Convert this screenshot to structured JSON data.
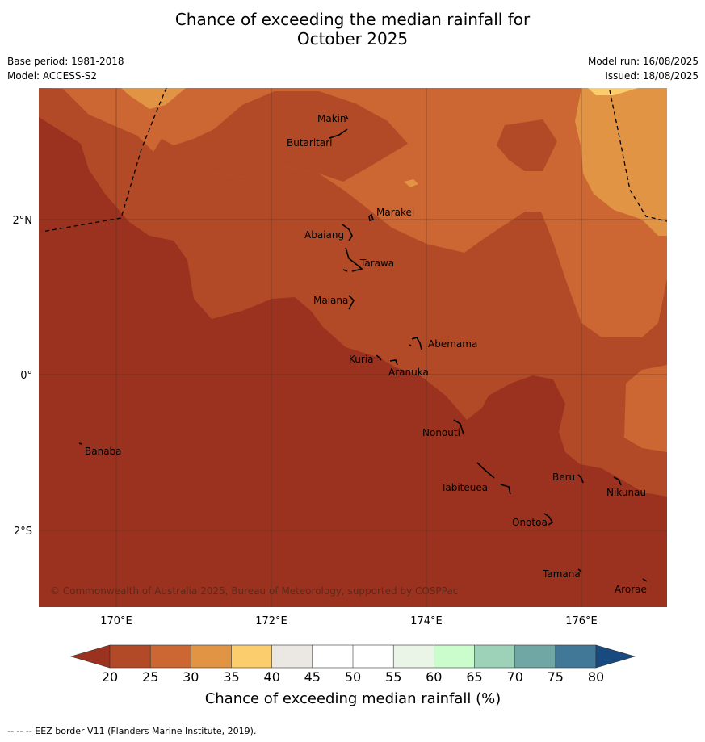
{
  "title_line1": "Chance of exceeding the median rainfall for",
  "title_line2": "October 2025",
  "base_period": "Base period: 1981-2018",
  "model": "Model: ACCESS-S2",
  "model_run": "Model run: 16/08/2025",
  "issued": "Issued: 18/08/2025",
  "copyright": "© Commonwealth of Australia 2025, Bureau of Meteorology, supported by COSPPac",
  "axes": {
    "lon_ticks": [
      "170°E",
      "172°E",
      "174°E",
      "176°E"
    ],
    "lat_ticks": [
      "2°N",
      "0°",
      "2°S"
    ]
  },
  "places": {
    "makin": "Makin",
    "butaritari": "Butaritari",
    "marakei": "Marakei",
    "abaiang": "Abaiang",
    "tarawa": "Tarawa",
    "maiana": "Maiana",
    "abemama": "Abemama",
    "kuria": "Kuria",
    "aranuka": "Aranuka",
    "nonouti": "Nonouti",
    "banaba": "Banaba",
    "beru": "Beru",
    "tabiteuea": "Tabiteuea",
    "nikunau": "Nikunau",
    "onotoa": "Onotoa",
    "tamana": "Tamana",
    "arorae": "Arorae"
  },
  "colorbar": {
    "label": "Chance of exceeding median rainfall (%)",
    "ticks": [
      "20",
      "25",
      "30",
      "35",
      "40",
      "45",
      "50",
      "55",
      "60",
      "65",
      "70",
      "75",
      "80"
    ],
    "colors": {
      "below20": "#9a321f",
      "c20_25": "#b24a27",
      "c25_30": "#cc6632",
      "c30_35": "#e19443",
      "c35_40": "#fccd6c",
      "c40_45": "#ebe7e2",
      "c45_50": "#ffffff",
      "c50_55": "#ffffff",
      "c55_60": "#eaf5e8",
      "c60_65": "#cbfdcc",
      "c65_70": "#9dd1b8",
      "c70_75": "#70a7a5",
      "c75_80": "#417897",
      "above80": "#18497f"
    }
  },
  "footnote": "--  --  -- EEZ border V11 (Flanders Marine Institute, 2019)."
}
